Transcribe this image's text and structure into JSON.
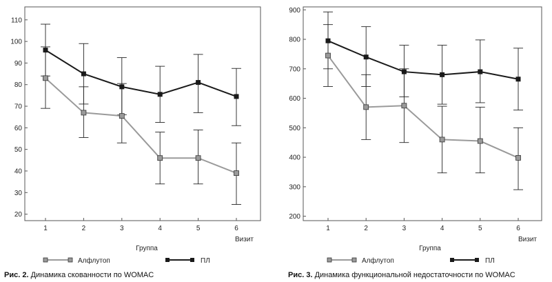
{
  "colors": {
    "alflutop": "#9a9a9a",
    "pl": "#1a1a1a",
    "axis": "#555555"
  },
  "chart_data": [
    {
      "type": "line",
      "caption_prefix": "Рис. 2.",
      "caption_text": "Динамика скованности по WOMAC",
      "xlabel": "Визит",
      "legend_title": "Группа",
      "x": [
        1,
        2,
        3,
        4,
        5,
        6
      ],
      "ylim": [
        17,
        116
      ],
      "yticks": [
        20,
        30,
        40,
        50,
        60,
        70,
        80,
        90,
        100,
        110
      ],
      "series": [
        {
          "name": "Алфлутоп",
          "color": "#9a9a9a",
          "values": [
            83,
            67,
            65.5,
            46,
            46,
            39
          ],
          "err_low": [
            69,
            55.5,
            53,
            34,
            34,
            24.5
          ],
          "err_high": [
            97.5,
            79,
            80.5,
            58,
            59,
            53
          ]
        },
        {
          "name": "ПЛ",
          "color": "#1a1a1a",
          "values": [
            96,
            85,
            79,
            75.5,
            81,
            74.5
          ],
          "err_low": [
            84,
            71,
            66,
            62.5,
            67,
            61
          ],
          "err_high": [
            108,
            99,
            92.5,
            88.5,
            94,
            87.5
          ]
        }
      ]
    },
    {
      "type": "line",
      "caption_prefix": "Рис. 3.",
      "caption_text": "Динамика функциональной недостаточности по WOMAC",
      "xlabel": "Визит",
      "legend_title": "Группа",
      "x": [
        1,
        2,
        3,
        4,
        5,
        6
      ],
      "ylim": [
        185,
        910
      ],
      "yticks": [
        200,
        300,
        400,
        500,
        600,
        700,
        800,
        900
      ],
      "series": [
        {
          "name": "Алфлутоп",
          "color": "#9a9a9a",
          "values": [
            745,
            570,
            575,
            460,
            455,
            398
          ],
          "err_low": [
            640,
            460,
            450,
            347,
            347,
            290
          ],
          "err_high": [
            850,
            680,
            700,
            573,
            570,
            500
          ]
        },
        {
          "name": "ПЛ",
          "color": "#1a1a1a",
          "values": [
            795,
            740,
            690,
            680,
            690,
            665
          ],
          "err_low": [
            700,
            640,
            605,
            580,
            585,
            560
          ],
          "err_high": [
            893,
            843,
            780,
            780,
            798,
            770
          ]
        }
      ]
    }
  ]
}
